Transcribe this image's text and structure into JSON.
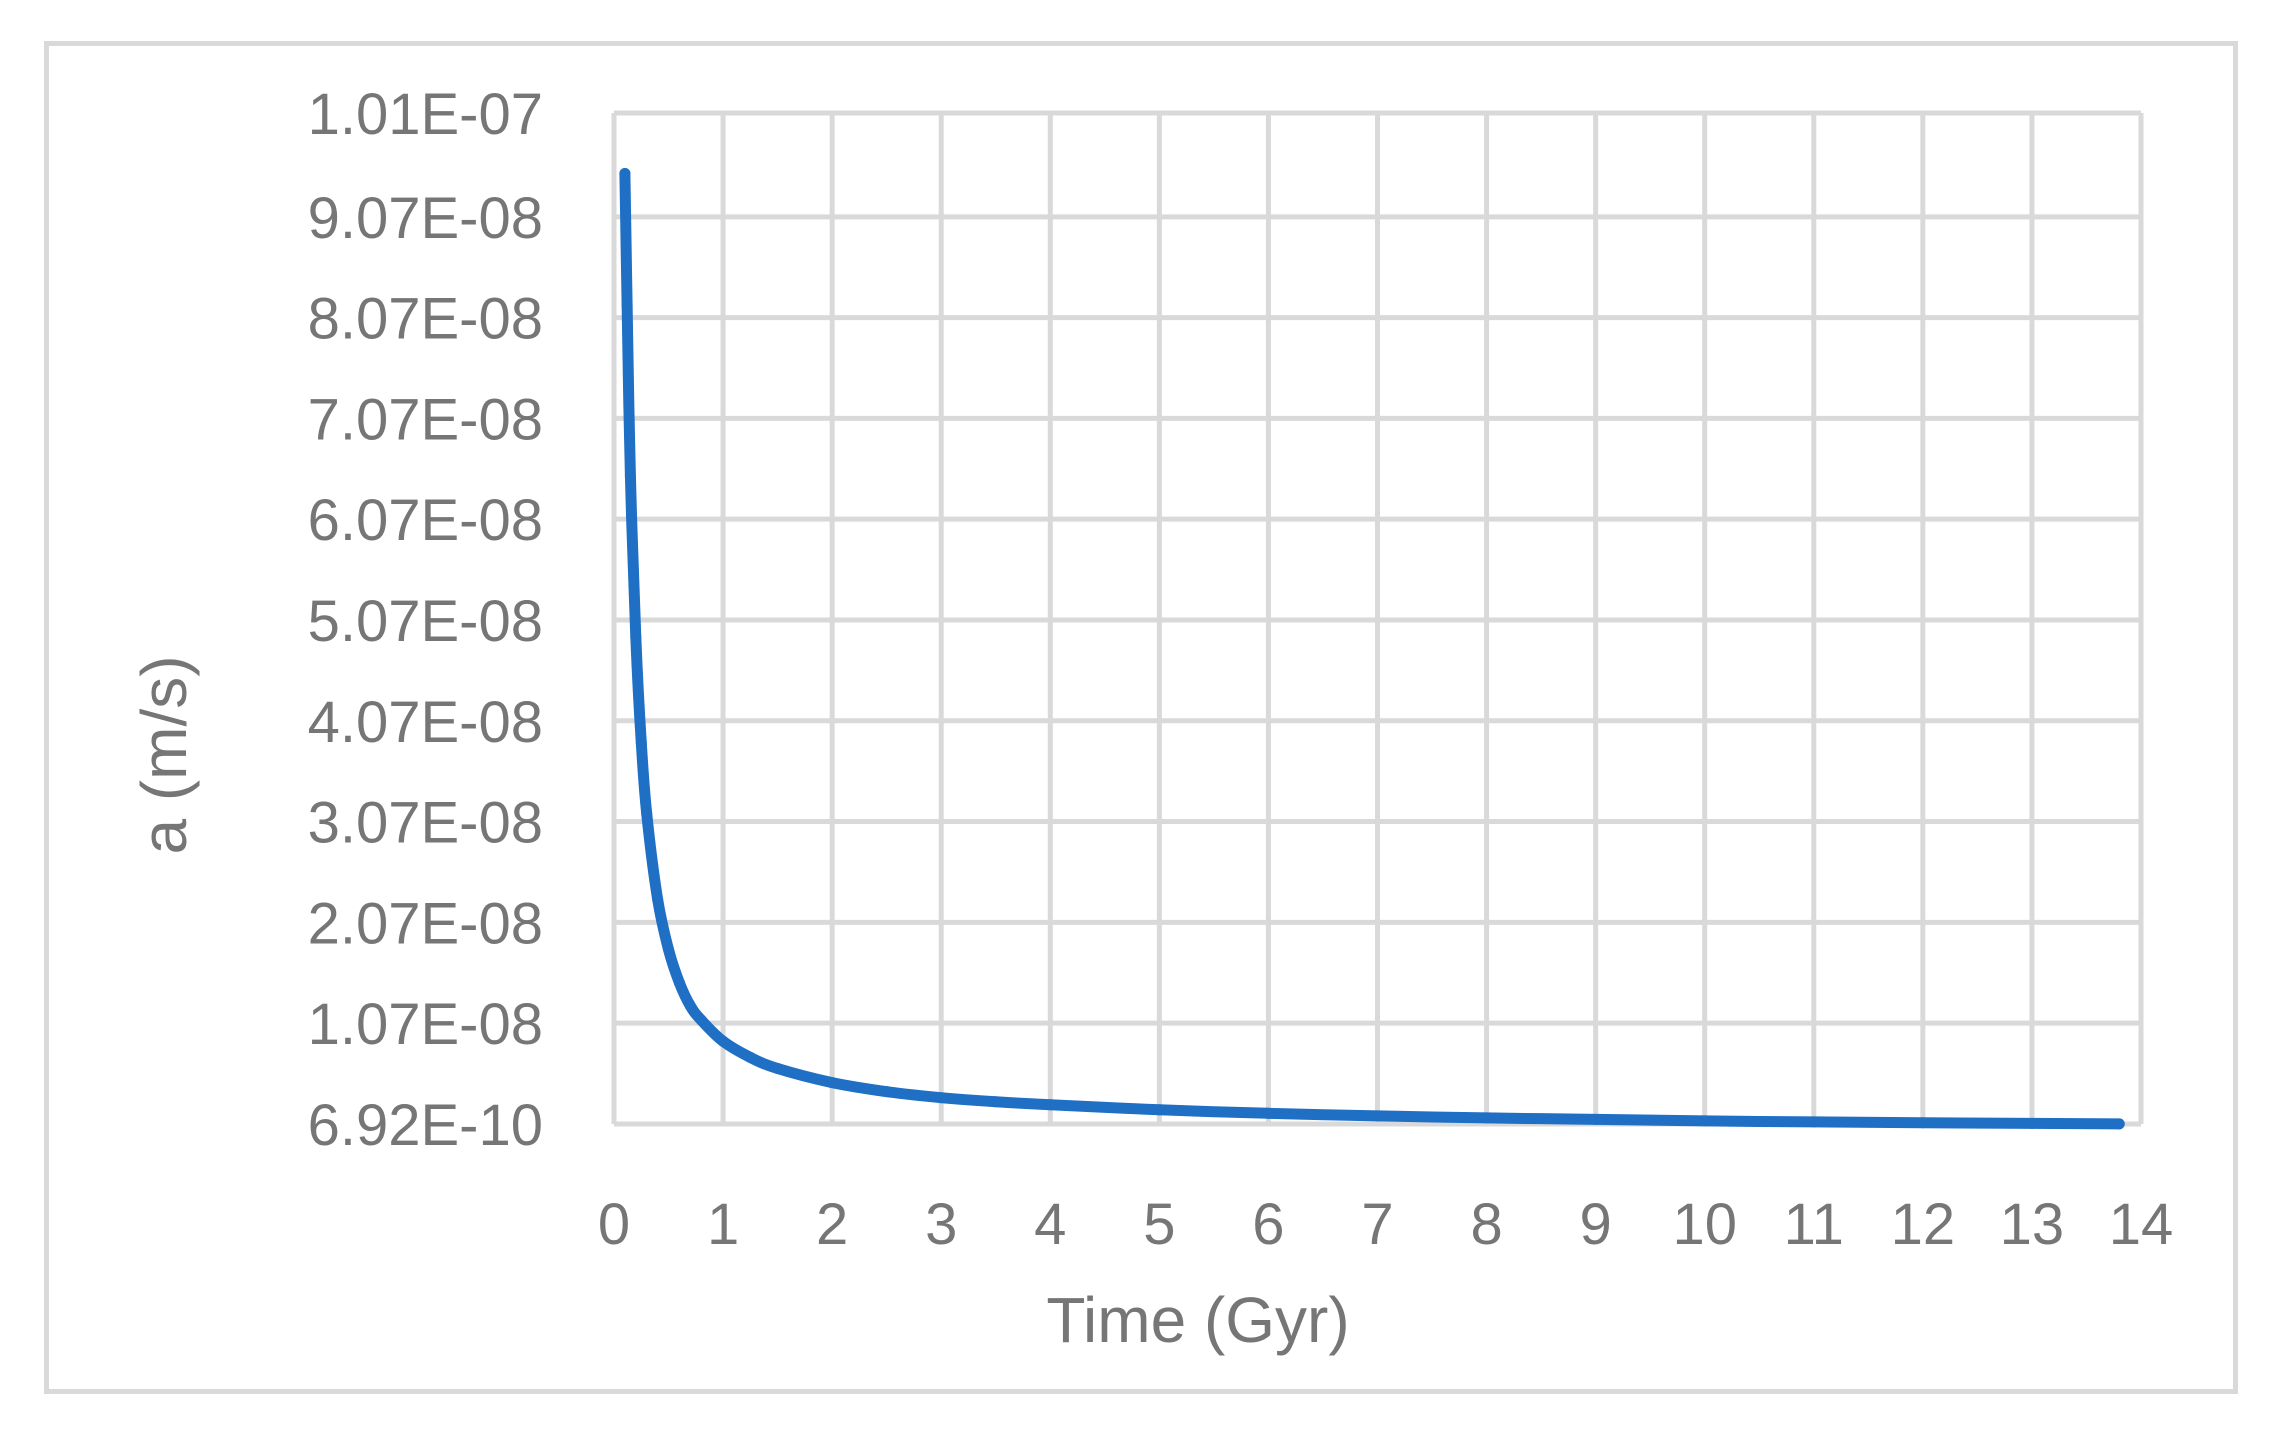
{
  "chart_data": {
    "type": "line",
    "title": "",
    "xlabel": "Time (Gyr)",
    "ylabel": "a (m/s)",
    "xlim": [
      0,
      14
    ],
    "ylim": [
      6.92e-10,
      1.01e-07
    ],
    "x_ticks": [
      0,
      1,
      2,
      3,
      4,
      5,
      6,
      7,
      8,
      9,
      10,
      11,
      12,
      13,
      14
    ],
    "x_tick_labels": [
      "0",
      "1",
      "2",
      "3",
      "4",
      "5",
      "6",
      "7",
      "8",
      "9",
      "10",
      "11",
      "12",
      "13",
      "14"
    ],
    "y_ticks": [
      6.92e-10,
      1.07e-08,
      2.07e-08,
      3.07e-08,
      4.07e-08,
      5.07e-08,
      6.07e-08,
      7.07e-08,
      8.07e-08,
      9.07e-08,
      1.01e-07
    ],
    "y_tick_labels": [
      "6.92E-10",
      "1.07E-08",
      "2.07E-08",
      "3.07E-08",
      "4.07E-08",
      "5.07E-08",
      "6.07E-08",
      "7.07E-08",
      "8.07E-08",
      "9.07E-08",
      "1.01E-07"
    ],
    "grid": true,
    "legend": "none",
    "series": [
      {
        "color": "#1f6fc5",
        "x": [
          0.1,
          0.12,
          0.15,
          0.2,
          0.25,
          0.3,
          0.4,
          0.5,
          0.6,
          0.7,
          0.8,
          1.0,
          1.25,
          1.5,
          2.0,
          2.5,
          3.0,
          3.5,
          4.0,
          5.0,
          6.0,
          7.0,
          8.0,
          9.0,
          10.0,
          11.0,
          12.0,
          13.0,
          13.8
        ],
        "y": [
          9.5e-08,
          8.2e-08,
          6.5e-08,
          4.9e-08,
          3.85e-08,
          3.15e-08,
          2.3e-08,
          1.8e-08,
          1.47e-08,
          1.24e-08,
          1.1e-08,
          8.9e-09,
          7.3e-09,
          6.2e-09,
          4.8e-09,
          3.9e-09,
          3.3e-09,
          2.9e-09,
          2.6e-09,
          2.1e-09,
          1.75e-09,
          1.5e-09,
          1.3e-09,
          1.15e-09,
          1e-09,
          9e-10,
          8.2e-10,
          7.5e-10,
          7e-10
        ]
      }
    ]
  }
}
